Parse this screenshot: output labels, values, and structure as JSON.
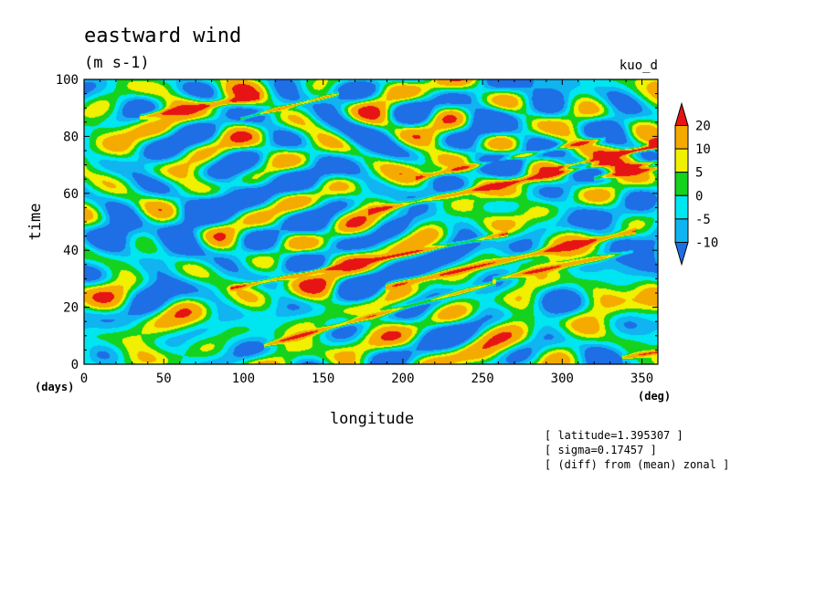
{
  "chart_data": {
    "type": "heatmap",
    "title": "eastward wind",
    "units": "(m s-1)",
    "dataset_label": "kuo_d",
    "xlabel": "longitude",
    "ylabel": "time",
    "x_unit": "(deg)",
    "y_unit": "(days)",
    "xlim": [
      0,
      360
    ],
    "ylim": [
      0,
      100
    ],
    "x_ticks": [
      0,
      50,
      100,
      150,
      200,
      250,
      300,
      350
    ],
    "y_ticks": [
      0,
      20,
      40,
      60,
      80,
      100
    ],
    "colorbar": {
      "levels": [
        -10,
        -5,
        0,
        5,
        10,
        20
      ],
      "level_labels": [
        "-10",
        "-5",
        "0",
        "5",
        "10",
        "20"
      ],
      "colors": [
        "#1e6ee6",
        "#0fb4f0",
        "#00e6f0",
        "#14d21e",
        "#f0f000",
        "#f5aa00",
        "#e61414"
      ],
      "extend": "both"
    },
    "annotations": [
      "[ latitude=1.395307 ]",
      "[ sigma=0.17457 ]",
      "[ (diff) from (mean) zonal ]"
    ]
  }
}
